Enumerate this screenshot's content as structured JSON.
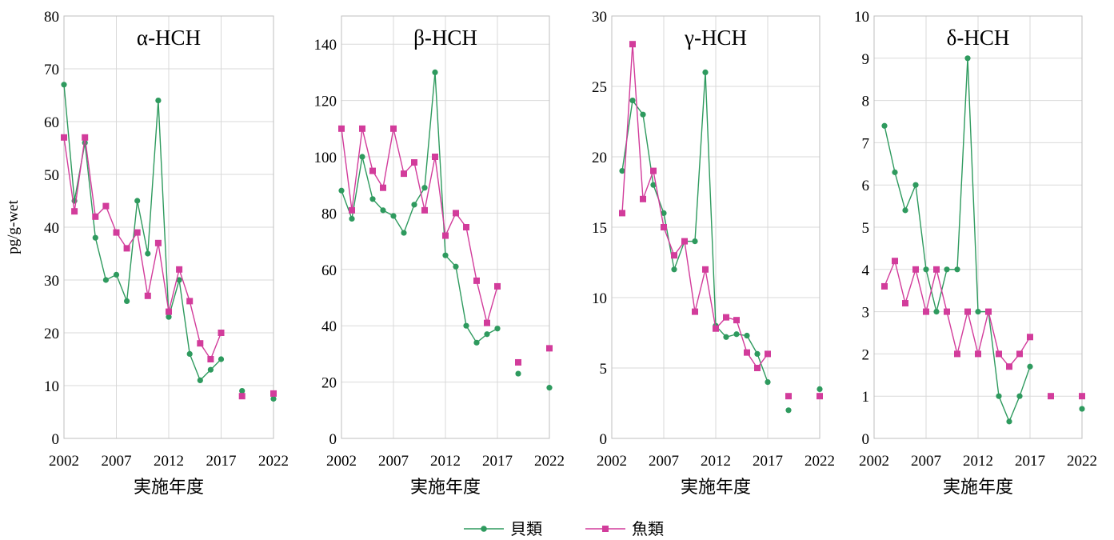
{
  "chart_data": [
    {
      "type": "line",
      "title": "α-HCH",
      "xlabel": "実施年度",
      "ylabel": "pg/g-wet",
      "xlim": [
        2002,
        2022
      ],
      "ylim": [
        0,
        80
      ],
      "xticks": [
        "2002",
        "2007",
        "2012",
        "2017",
        "2022"
      ],
      "yticks": [
        "0",
        "10",
        "20",
        "30",
        "40",
        "50",
        "60",
        "70",
        "80"
      ],
      "series": [
        {
          "name": "貝類",
          "points": [
            [
              2002,
              67
            ],
            [
              2003,
              45
            ],
            [
              2004,
              56
            ],
            [
              2005,
              38
            ],
            [
              2006,
              30
            ],
            [
              2007,
              31
            ],
            [
              2008,
              26
            ],
            [
              2009,
              45
            ],
            [
              2010,
              35
            ],
            [
              2011,
              64
            ],
            [
              2012,
              23
            ],
            [
              2013,
              30
            ],
            [
              2014,
              16
            ],
            [
              2015,
              11
            ],
            [
              2016,
              13
            ],
            [
              2017,
              15
            ],
            [
              2019,
              9
            ],
            [
              2022,
              7.5
            ]
          ]
        },
        {
          "name": "魚類",
          "points": [
            [
              2002,
              57
            ],
            [
              2003,
              43
            ],
            [
              2004,
              57
            ],
            [
              2005,
              42
            ],
            [
              2006,
              44
            ],
            [
              2007,
              39
            ],
            [
              2008,
              36
            ],
            [
              2009,
              39
            ],
            [
              2010,
              27
            ],
            [
              2011,
              37
            ],
            [
              2012,
              24
            ],
            [
              2013,
              32
            ],
            [
              2014,
              26
            ],
            [
              2015,
              18
            ],
            [
              2016,
              15
            ],
            [
              2017,
              20
            ],
            [
              2019,
              8
            ],
            [
              2022,
              8.5
            ]
          ]
        }
      ]
    },
    {
      "type": "line",
      "title": "β-HCH",
      "xlabel": "実施年度",
      "ylabel": "",
      "xlim": [
        2002,
        2022
      ],
      "ylim": [
        0,
        150
      ],
      "xticks": [
        "2002",
        "2007",
        "2012",
        "2017",
        "2022"
      ],
      "yticks": [
        "0",
        "20",
        "40",
        "60",
        "80",
        "100",
        "120",
        "140"
      ],
      "series": [
        {
          "name": "貝類",
          "points": [
            [
              2002,
              88
            ],
            [
              2003,
              78
            ],
            [
              2004,
              100
            ],
            [
              2005,
              85
            ],
            [
              2006,
              81
            ],
            [
              2007,
              79
            ],
            [
              2008,
              73
            ],
            [
              2009,
              83
            ],
            [
              2010,
              89
            ],
            [
              2011,
              130
            ],
            [
              2012,
              65
            ],
            [
              2013,
              61
            ],
            [
              2014,
              40
            ],
            [
              2015,
              34
            ],
            [
              2016,
              37
            ],
            [
              2017,
              39
            ],
            [
              2019,
              23
            ],
            [
              2022,
              18
            ]
          ]
        },
        {
          "name": "魚類",
          "points": [
            [
              2002,
              110
            ],
            [
              2003,
              81
            ],
            [
              2004,
              110
            ],
            [
              2005,
              95
            ],
            [
              2006,
              89
            ],
            [
              2007,
              110
            ],
            [
              2008,
              94
            ],
            [
              2009,
              98
            ],
            [
              2010,
              81
            ],
            [
              2011,
              100
            ],
            [
              2012,
              72
            ],
            [
              2013,
              80
            ],
            [
              2014,
              75
            ],
            [
              2015,
              56
            ],
            [
              2016,
              41
            ],
            [
              2017,
              54
            ],
            [
              2019,
              27
            ],
            [
              2022,
              32
            ]
          ]
        }
      ]
    },
    {
      "type": "line",
      "title": "γ-HCH",
      "xlabel": "実施年度",
      "ylabel": "",
      "xlim": [
        2002,
        2022
      ],
      "ylim": [
        0,
        30
      ],
      "xticks": [
        "2002",
        "2007",
        "2012",
        "2017",
        "2022"
      ],
      "yticks": [
        "0",
        "5",
        "10",
        "15",
        "20",
        "25",
        "30"
      ],
      "series": [
        {
          "name": "貝類",
          "points": [
            [
              2003,
              19
            ],
            [
              2004,
              24
            ],
            [
              2005,
              23
            ],
            [
              2006,
              18
            ],
            [
              2007,
              16
            ],
            [
              2008,
              12
            ],
            [
              2009,
              14
            ],
            [
              2010,
              14
            ],
            [
              2011,
              26
            ],
            [
              2012,
              8
            ],
            [
              2013,
              7.2
            ],
            [
              2014,
              7.4
            ],
            [
              2015,
              7.3
            ],
            [
              2016,
              6
            ],
            [
              2017,
              4
            ],
            [
              2019,
              2
            ],
            [
              2022,
              3.5
            ]
          ]
        },
        {
          "name": "魚類",
          "points": [
            [
              2003,
              16
            ],
            [
              2004,
              28
            ],
            [
              2005,
              17
            ],
            [
              2006,
              19
            ],
            [
              2007,
              15
            ],
            [
              2008,
              13
            ],
            [
              2009,
              14
            ],
            [
              2010,
              9
            ],
            [
              2011,
              12
            ],
            [
              2012,
              7.8
            ],
            [
              2013,
              8.6
            ],
            [
              2014,
              8.4
            ],
            [
              2015,
              6.1
            ],
            [
              2016,
              5
            ],
            [
              2017,
              6
            ],
            [
              2019,
              3
            ],
            [
              2022,
              3
            ]
          ]
        }
      ]
    },
    {
      "type": "line",
      "title": "δ-HCH",
      "xlabel": "実施年度",
      "ylabel": "",
      "xlim": [
        2002,
        2022
      ],
      "ylim": [
        0,
        10
      ],
      "xticks": [
        "2002",
        "2007",
        "2012",
        "2017",
        "2022"
      ],
      "yticks": [
        "0",
        "1",
        "2",
        "3",
        "4",
        "5",
        "6",
        "7",
        "8",
        "9",
        "10"
      ],
      "series": [
        {
          "name": "貝類",
          "points": [
            [
              2003,
              7.4
            ],
            [
              2004,
              6.3
            ],
            [
              2005,
              5.4
            ],
            [
              2006,
              6
            ],
            [
              2007,
              4
            ],
            [
              2008,
              3
            ],
            [
              2009,
              4
            ],
            [
              2010,
              4
            ],
            [
              2011,
              9
            ],
            [
              2012,
              3
            ],
            [
              2013,
              3
            ],
            [
              2014,
              1
            ],
            [
              2015,
              0.4
            ],
            [
              2016,
              1
            ],
            [
              2017,
              1.7
            ],
            [
              2022,
              0.7
            ]
          ]
        },
        {
          "name": "魚類",
          "points": [
            [
              2003,
              3.6
            ],
            [
              2004,
              4.2
            ],
            [
              2005,
              3.2
            ],
            [
              2006,
              4
            ],
            [
              2007,
              3
            ],
            [
              2008,
              4
            ],
            [
              2009,
              3
            ],
            [
              2010,
              2
            ],
            [
              2011,
              3
            ],
            [
              2012,
              2
            ],
            [
              2013,
              3
            ],
            [
              2014,
              2
            ],
            [
              2015,
              1.7
            ],
            [
              2016,
              2
            ],
            [
              2017,
              2.4
            ],
            [
              2019,
              1
            ],
            [
              2022,
              1
            ]
          ]
        }
      ]
    }
  ],
  "legend": {
    "position": "bottom-center",
    "entries": [
      {
        "label": "貝類",
        "color": "#2e9a5e",
        "marker": "circle"
      },
      {
        "label": "魚類",
        "color": "#d23c9b",
        "marker": "square"
      }
    ]
  }
}
